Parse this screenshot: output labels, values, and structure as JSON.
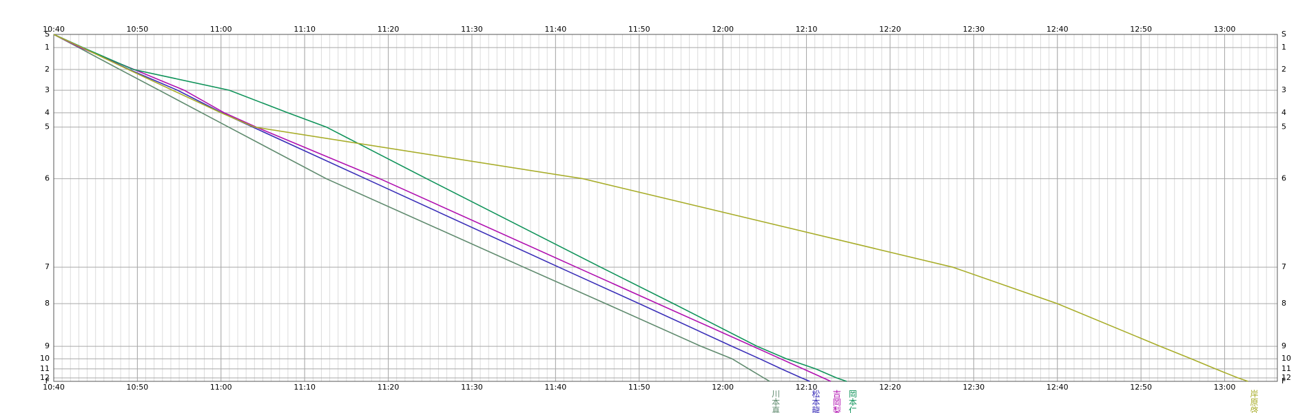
{
  "chart_data": {
    "type": "line",
    "xlim": [
      640,
      786.3
    ],
    "xticks": [
      {
        "value": 640,
        "label": "10:40"
      },
      {
        "value": 650,
        "label": "10:50"
      },
      {
        "value": 660,
        "label": "11:00"
      },
      {
        "value": 670,
        "label": "11:10"
      },
      {
        "value": 680,
        "label": "11:20"
      },
      {
        "value": 690,
        "label": "11:30"
      },
      {
        "value": 700,
        "label": "11:40"
      },
      {
        "value": 710,
        "label": "11:50"
      },
      {
        "value": 720,
        "label": "12:00"
      },
      {
        "value": 730,
        "label": "12:10"
      },
      {
        "value": 740,
        "label": "12:20"
      },
      {
        "value": 750,
        "label": "12:30"
      },
      {
        "value": 760,
        "label": "12:40"
      },
      {
        "value": 770,
        "label": "12:50"
      },
      {
        "value": 780,
        "label": "13:00"
      }
    ],
    "ylim": [
      0,
      100
    ],
    "yticks": [
      {
        "value": 0,
        "label": "S"
      },
      3.8,
      10.1,
      16.1,
      22.6,
      26.7,
      41.6,
      67.1,
      77.6,
      89.9,
      93.5,
      96.4,
      99,
      {
        "value": 100,
        "label": "F"
      }
    ],
    "ytick_labels": [
      "S",
      "1",
      "2",
      "3",
      "4",
      "5",
      "6",
      "7",
      "8",
      "9",
      "10",
      "11",
      "12",
      "F"
    ],
    "grid": true,
    "series": [
      {
        "name": "川本真",
        "color": "#5f8a6e",
        "values": [
          640,
          643,
          647.9,
          652.6,
          657.7,
          660.9,
          672.6,
          696.2,
          706,
          717.4,
          721.1,
          723.1,
          724.9,
          725.6
        ]
      },
      {
        "name": "松本龍",
        "color": "#3a2fb8",
        "values": [
          640,
          643.5,
          649,
          654.8,
          660.1,
          663.8,
          677.3,
          700.4,
          710,
          721.1,
          724.4,
          727,
          729.4,
          730.4
        ]
      },
      {
        "name": "吉岡梨",
        "color": "#b010b0",
        "values": [
          640,
          643.2,
          649.6,
          655.6,
          660.4,
          664.2,
          679,
          702.5,
          712.2,
          723.6,
          726.9,
          729.6,
          732,
          732.9
        ]
      },
      {
        "name": "岡本仁",
        "color": "#10935a",
        "values": [
          640,
          643.5,
          649.5,
          661,
          668,
          672.6,
          684.6,
          705.4,
          714.1,
          724.1,
          727.6,
          731.1,
          733.6,
          734.8
        ]
      },
      {
        "name": "岸原啓",
        "color": "#a8ad2a",
        "values": [
          640,
          643.4,
          648.9,
          654.2,
          660,
          664,
          703.3,
          747.5,
          760,
          772.3,
          776,
          778.9,
          781.6,
          782.8
        ]
      }
    ]
  }
}
